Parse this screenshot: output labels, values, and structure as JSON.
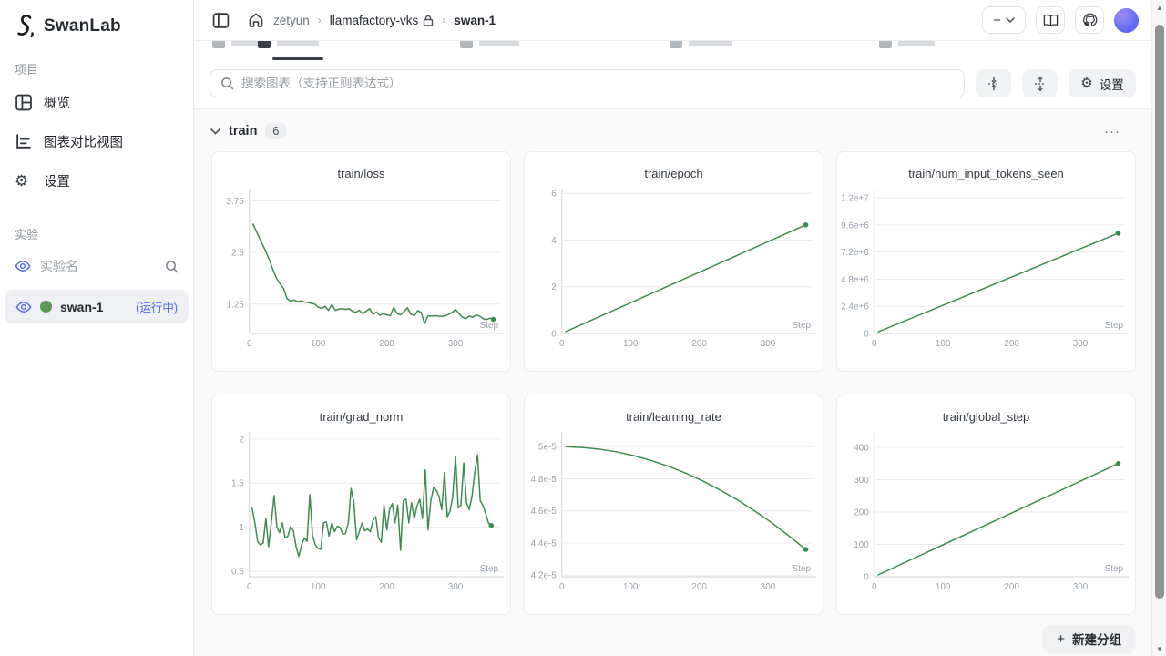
{
  "app": {
    "brand": "SwanLab"
  },
  "topbar": {
    "breadcrumb": {
      "org": "zetyun",
      "project": "llamafactory-vks",
      "experiment": "swan-1"
    }
  },
  "sidebar": {
    "project_section": "项目",
    "nav": [
      {
        "label": "概览"
      },
      {
        "label": "图表对比视图"
      },
      {
        "label": "设置"
      }
    ],
    "experiment_section": "实验",
    "experiment_filter_placeholder": "实验名",
    "experiment": {
      "name": "swan-1",
      "status": "(运行中)"
    }
  },
  "toolbar": {
    "search_placeholder": "搜索图表（支持正则表达式）",
    "settings_label": "设置"
  },
  "group": {
    "name": "train",
    "count": "6",
    "more": "···"
  },
  "footer": {
    "new_group": "新建分组",
    "plus": "+"
  },
  "colors": {
    "line_green": "#3d8b50",
    "accent_blue": "#4c68e8",
    "running_dot_green": "#5a975a",
    "grid": "#ececee",
    "axis": "#d7dade",
    "tick_text": "#9aa3ad"
  },
  "chart_data": [
    {
      "type": "line",
      "title": "train/loss",
      "xlabel": "Step",
      "x_ticks": [
        0,
        100,
        200,
        300
      ],
      "x_range": [
        0,
        365
      ],
      "y_range": [
        0.54,
        3.96
      ],
      "y_ticks": [
        {
          "v": 1.25,
          "l": "1.25"
        },
        {
          "v": 2.5,
          "l": "2.5"
        },
        {
          "v": 3.75,
          "l": "3.75"
        }
      ],
      "x_start": 5,
      "x_step": 5,
      "end_marker": true,
      "values": [
        3.2,
        3.02,
        2.84,
        2.66,
        2.48,
        2.28,
        2.05,
        1.86,
        1.73,
        1.62,
        1.38,
        1.32,
        1.35,
        1.31,
        1.33,
        1.3,
        1.29,
        1.27,
        1.25,
        1.18,
        1.14,
        1.2,
        1.1,
        1.24,
        1.1,
        1.13,
        1.14,
        1.12,
        1.14,
        1.08,
        1.05,
        1.1,
        1.02,
        1.08,
        1.14,
        1.0,
        1.06,
        0.98,
        1.02,
        0.99,
        0.97,
        1.17,
        1.02,
        0.99,
        1.07,
        1.16,
        1.01,
        0.97,
        1.09,
        1.05,
        0.78,
        0.97,
        0.96,
        0.97,
        0.96,
        0.95,
        0.97,
        1.0,
        1.05,
        1.12,
        1.02,
        0.93,
        0.9,
        0.96,
        0.93,
        0.99,
        0.96,
        0.9,
        0.87,
        0.91,
        0.88
      ]
    },
    {
      "type": "line",
      "title": "train/epoch",
      "xlabel": "Step",
      "x_ticks": [
        0,
        100,
        200,
        300
      ],
      "x_range": [
        0,
        365
      ],
      "y_range": [
        0,
        6.05
      ],
      "y_ticks": [
        {
          "v": 0,
          "l": "0"
        },
        {
          "v": 2,
          "l": "2"
        },
        {
          "v": 4,
          "l": "4"
        },
        {
          "v": 6,
          "l": "6"
        }
      ],
      "x_start": 5,
      "x_step": 350,
      "end_marker": true,
      "values": [
        0.07,
        4.65
      ]
    },
    {
      "type": "line",
      "title": "train/num_input_tokens_seen",
      "xlabel": "Step",
      "x_ticks": [
        0,
        100,
        200,
        300
      ],
      "x_range": [
        0,
        365
      ],
      "y_range": [
        0,
        12500000
      ],
      "y_ticks": [
        {
          "v": 0,
          "l": "0"
        },
        {
          "v": 2400000,
          "l": "2.4e+6"
        },
        {
          "v": 4800000,
          "l": "4.8e+6"
        },
        {
          "v": 7200000,
          "l": "7.2e+6"
        },
        {
          "v": 9600000,
          "l": "9.6e+6"
        },
        {
          "v": 12000000,
          "l": "1.2e+7"
        }
      ],
      "x_start": 5,
      "x_step": 350,
      "end_marker": true,
      "values": [
        120000,
        8870000
      ]
    },
    {
      "type": "line",
      "title": "train/grad_norm",
      "xlabel": "Step",
      "x_ticks": [
        0,
        100,
        200,
        300
      ],
      "x_range": [
        0,
        365
      ],
      "y_range": [
        0.44,
        2.04
      ],
      "y_ticks": [
        {
          "v": 0.5,
          "l": "0.5"
        },
        {
          "v": 1,
          "l": "1"
        },
        {
          "v": 1.5,
          "l": "1.5"
        },
        {
          "v": 2,
          "l": "2"
        }
      ],
      "x_start": 4,
      "x_step": 4,
      "end_marker": true,
      "values": [
        1.22,
        1.05,
        0.84,
        0.8,
        0.82,
        1.1,
        0.78,
        1.06,
        1.36,
        1.0,
        0.94,
        1.05,
        0.88,
        0.9,
        1.01,
        0.96,
        0.78,
        0.67,
        0.8,
        0.88,
        0.84,
        1.37,
        0.9,
        0.8,
        0.76,
        0.75,
        1.05,
        1.06,
        0.9,
        1.05,
        0.95,
        1.01,
        1.0,
        0.92,
        0.93,
        1.05,
        1.44,
        1.28,
        0.86,
        0.95,
        1.05,
        0.96,
        0.98,
        0.95,
        1.08,
        1.12,
        0.88,
        0.83,
        1.25,
        0.97,
        1.2,
        1.27,
        1.05,
        1.25,
        0.74,
        1.3,
        1.32,
        1.05,
        1.28,
        1.1,
        1.24,
        1.32,
        1.1,
        1.65,
        0.97,
        1.3,
        1.45,
        1.42,
        1.35,
        1.2,
        1.62,
        1.12,
        1.18,
        1.35,
        1.8,
        1.22,
        1.25,
        1.73,
        1.28,
        1.2,
        1.35,
        1.62,
        1.82,
        1.3,
        1.25,
        1.15,
        1.05,
        1.02
      ]
    },
    {
      "type": "line",
      "title": "train/learning_rate",
      "xlabel": "Step",
      "x_ticks": [
        0,
        100,
        200,
        300
      ],
      "x_range": [
        0,
        365
      ],
      "y_range": [
        4.19e-05,
        5.07e-05
      ],
      "y_ticks": [
        {
          "v": 4.2e-05,
          "l": "4.2e-5"
        },
        {
          "v": 4.4e-05,
          "l": "4.4e-5"
        },
        {
          "v": 4.6e-05,
          "l": "4.6e-5"
        },
        {
          "v": 4.8e-05,
          "l": "4.8e-5"
        },
        {
          "v": 5e-05,
          "l": "5e-5"
        }
      ],
      "x_start": 5,
      "x_step": 25,
      "end_marker": true,
      "values": [
        5e-05,
        4.995e-05,
        4.985e-05,
        4.968e-05,
        4.944e-05,
        4.914e-05,
        4.878e-05,
        4.836e-05,
        4.787e-05,
        4.731e-05,
        4.67e-05,
        4.601e-05,
        4.528e-05,
        4.446e-05,
        4.36e-05
      ]
    },
    {
      "type": "line",
      "title": "train/global_step",
      "xlabel": "Step",
      "x_ticks": [
        0,
        100,
        200,
        300
      ],
      "x_range": [
        0,
        365
      ],
      "y_range": [
        0,
        437
      ],
      "y_ticks": [
        {
          "v": 0,
          "l": "0"
        },
        {
          "v": 100,
          "l": "100"
        },
        {
          "v": 200,
          "l": "200"
        },
        {
          "v": 300,
          "l": "300"
        },
        {
          "v": 400,
          "l": "400"
        }
      ],
      "x_start": 5,
      "x_step": 350,
      "end_marker": true,
      "values": [
        5,
        350
      ]
    }
  ]
}
